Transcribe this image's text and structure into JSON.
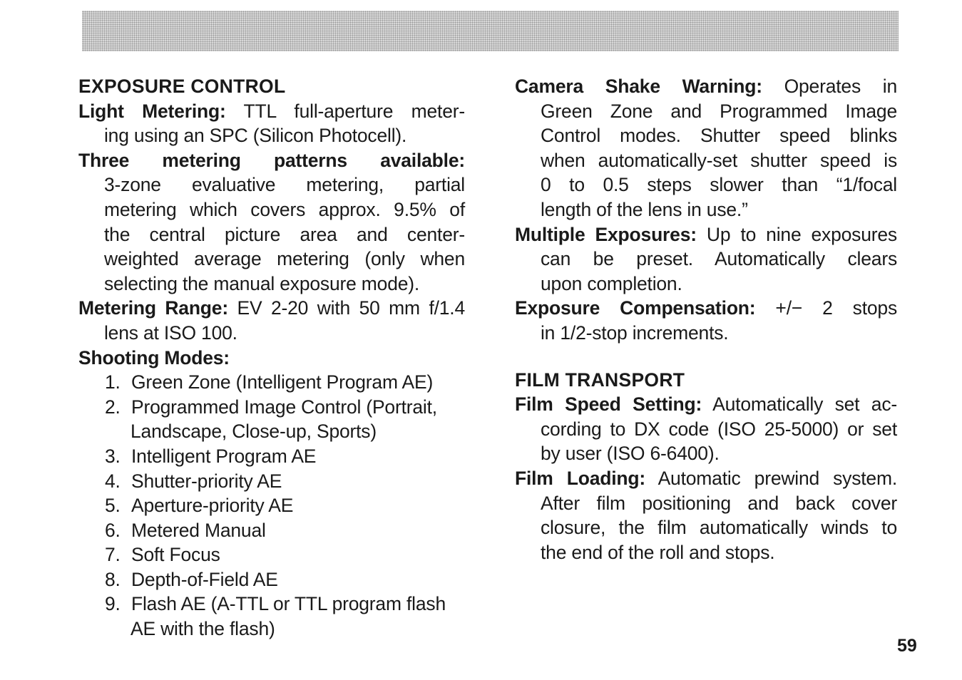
{
  "page_number": "59",
  "left": [
    {
      "type": "heading",
      "text": "EXPOSURE CONTROL"
    },
    {
      "type": "item",
      "term": "Light Metering:",
      "lines": [
        "TTL full-aperture meter-",
        "ing using an SPC (Silicon Photocell)."
      ]
    },
    {
      "type": "item",
      "term": "Three metering patterns available:",
      "lines": [
        "",
        "3-zone evaluative metering, partial",
        "metering which covers approx. 9.5% of",
        "the central picture area and center-",
        "weighted average metering (only when",
        "selecting the manual exposure mode)."
      ]
    },
    {
      "type": "item",
      "term": "Metering Range:",
      "lines": [
        "EV 2-20 with 50 mm f/1.4",
        "lens at ISO 100."
      ]
    },
    {
      "type": "item",
      "term": "Shooting Modes:",
      "lines": [
        ""
      ]
    },
    {
      "type": "list",
      "items": [
        {
          "n": "1.",
          "lines": [
            "Green Zone (Intelligent Program AE)"
          ]
        },
        {
          "n": "2.",
          "lines": [
            "Programmed Image Control (Portrait,",
            "Landscape, Close-up, Sports)"
          ]
        },
        {
          "n": "3.",
          "lines": [
            "Intelligent Program AE"
          ]
        },
        {
          "n": "4.",
          "lines": [
            "Shutter-priority AE"
          ]
        },
        {
          "n": "5.",
          "lines": [
            "Aperture-priority AE"
          ]
        },
        {
          "n": "6.",
          "lines": [
            "Metered Manual"
          ]
        },
        {
          "n": "7.",
          "lines": [
            "Soft Focus"
          ]
        },
        {
          "n": "8.",
          "lines": [
            "Depth-of-Field AE"
          ]
        },
        {
          "n": "9.",
          "lines": [
            "Flash AE (A-TTL or TTL program flash",
            "AE with the flash)"
          ]
        }
      ]
    }
  ],
  "right": [
    {
      "type": "item",
      "term": "Camera Shake Warning:",
      "lines": [
        "Operates in",
        "Green Zone and Programmed Image",
        "Control modes. Shutter speed blinks",
        "when automatically-set shutter speed is",
        "0 to 0.5 steps slower than “1/focal",
        "length of the lens in use.”"
      ]
    },
    {
      "type": "item",
      "term": "Multiple Exposures:",
      "lines": [
        "Up to nine exposures",
        "can be preset. Automatically clears",
        "upon completion."
      ]
    },
    {
      "type": "item",
      "term": "Exposure Compensation:",
      "lines": [
        "+/− 2 stops",
        "in 1/2-stop increments."
      ]
    },
    {
      "type": "gap"
    },
    {
      "type": "heading",
      "text": "FILM TRANSPORT"
    },
    {
      "type": "item",
      "term": "Film Speed Setting:",
      "lines": [
        "Automatically set ac-",
        "cording to DX code (ISO 25-5000) or set",
        "by user (ISO 6-6400)."
      ]
    },
    {
      "type": "item",
      "term": "Film Loading:",
      "lines": [
        "Automatic prewind system.",
        "After film positioning and back cover",
        "closure, the film automatically winds to",
        "the end of the roll and stops."
      ]
    }
  ]
}
